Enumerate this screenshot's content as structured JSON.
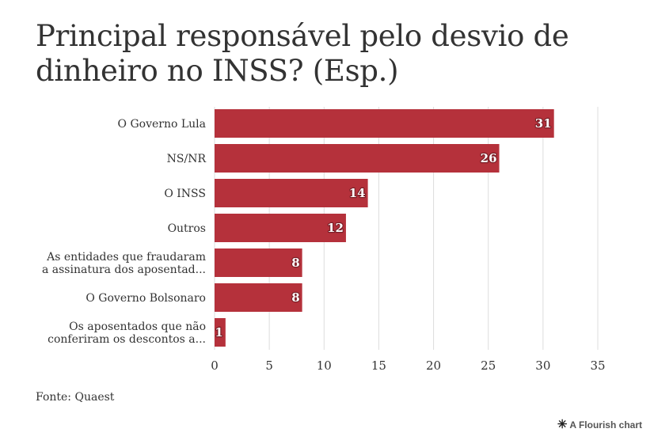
{
  "title": "Principal responsável pelo desvio de dinheiro no INSS? (Esp.)",
  "source": "Fonte: Quaest",
  "credit": {
    "icon": "flourish-asterisk-icon",
    "label": "A Flourish chart"
  },
  "chart_data": {
    "type": "bar",
    "orientation": "horizontal",
    "categories": [
      [
        "O Governo Lula"
      ],
      [
        "NS/NR"
      ],
      [
        "O INSS"
      ],
      [
        "Outros"
      ],
      [
        "As entidades que fraudaram",
        "a assinatura dos aposentad..."
      ],
      [
        "O Governo Bolsonaro"
      ],
      [
        "Os aposentados que não",
        "conferiram os descontos a..."
      ]
    ],
    "values": [
      31,
      26,
      14,
      12,
      8,
      8,
      1
    ],
    "xlim": [
      0,
      35
    ],
    "xticks": [
      0,
      5,
      10,
      15,
      20,
      25,
      30,
      35
    ],
    "grid": true,
    "bar_color": "#b5313b"
  }
}
